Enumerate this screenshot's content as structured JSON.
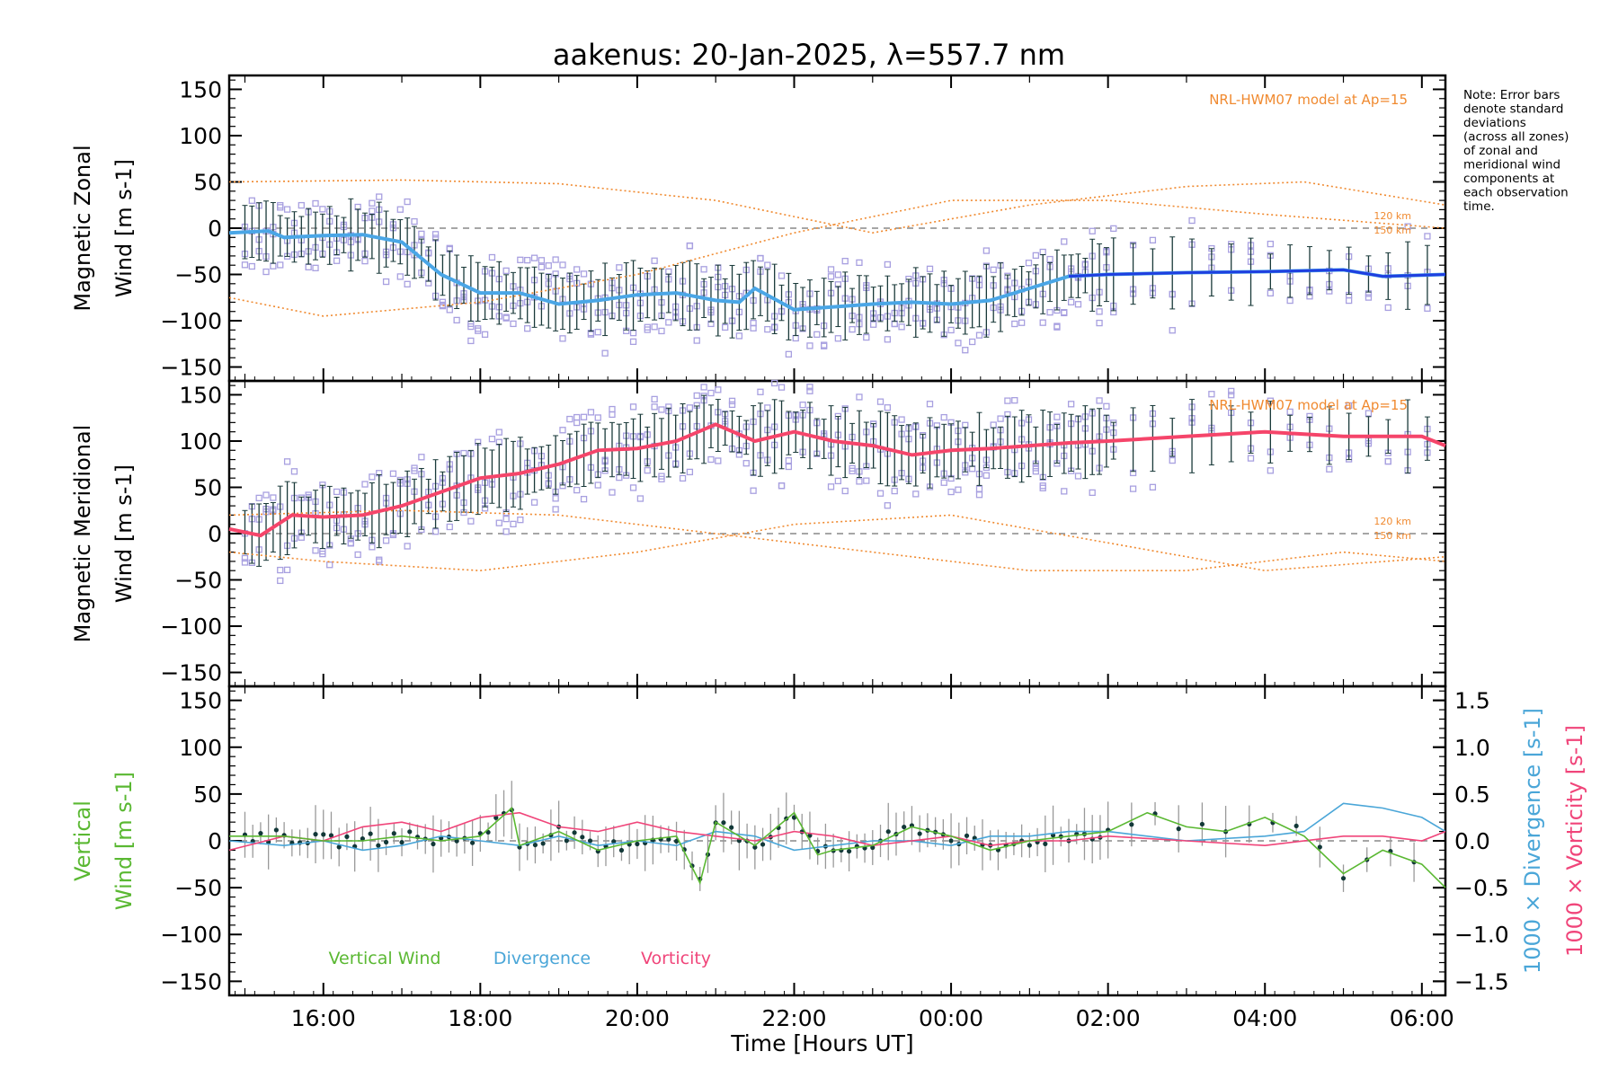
{
  "title": "aakenus: 20-Jan-2025, λ=557.7 nm",
  "note_lines": [
    "Note: Error bars",
    "denote standard",
    "deviations",
    "(across all zones)",
    "of zonal and",
    "meridional wind",
    "components at",
    "each observation",
    "time."
  ],
  "model_label": "NRL-HWM07 model at Ap=15",
  "alt_labels": [
    "120 km",
    "150 km"
  ],
  "xlabel": "Time [Hours UT]",
  "legend": [
    "Vertical Wind",
    "Divergence",
    "Vorticity"
  ],
  "colors": {
    "zonal": "#1f3fe0",
    "zonal_light": "#4aa6e6",
    "meridional": "#f5456a",
    "vertical": "#5ab832",
    "divergence": "#4aa6d8",
    "vorticity": "#f0457a",
    "model": "#f08a30",
    "scatter": "#a8a0e0",
    "errbar": "#1a3a3a"
  },
  "chart_data": [
    {
      "type": "line",
      "panel": "zonal",
      "title": "aakenus: 20-Jan-2025, λ=557.7 nm",
      "ylabel_line1": "Magnetic Zonal",
      "ylabel_line2": "Wind [m s-1]",
      "xticks": [
        "16:00",
        "18:00",
        "20:00",
        "22:00",
        "00:00",
        "02:00",
        "04:00",
        "06:00"
      ],
      "xtick_hours": [
        16,
        18,
        20,
        22,
        24,
        26,
        28,
        30
      ],
      "xlim_hours": [
        14.8,
        30.3
      ],
      "ylim": [
        -165,
        165
      ],
      "yticks": [
        150,
        100,
        50,
        0,
        -50,
        -100,
        -150
      ],
      "series": [
        {
          "name": "Zonal wind",
          "x": [
            14.8,
            15.3,
            15.5,
            16.0,
            16.5,
            17.0,
            17.5,
            18.0,
            18.5,
            19.0,
            19.5,
            20.0,
            20.5,
            21.0,
            21.3,
            21.5,
            22.0,
            22.5,
            23.0,
            23.5,
            24.0,
            24.5,
            25.0,
            25.5,
            26.0,
            27.0,
            28.0,
            29.0,
            29.5,
            30.3
          ],
          "y": [
            -5,
            -3,
            -10,
            -8,
            -7,
            -15,
            -50,
            -70,
            -70,
            -82,
            -78,
            -72,
            -70,
            -78,
            -80,
            -65,
            -88,
            -85,
            -82,
            -80,
            -82,
            -78,
            -65,
            -52,
            -50,
            -48,
            -47,
            -45,
            -52,
            -50
          ]
        },
        {
          "name": "Model 120 km",
          "x": [
            14.8,
            17,
            19,
            21,
            23,
            25,
            27,
            28.5,
            30.3
          ],
          "y": [
            50,
            52,
            48,
            30,
            -5,
            25,
            45,
            50,
            25
          ]
        },
        {
          "name": "Model 150 km",
          "x": [
            14.8,
            16,
            18,
            20,
            22,
            24,
            26,
            28,
            30.3
          ],
          "y": [
            -75,
            -95,
            -80,
            -50,
            -5,
            30,
            30,
            15,
            0
          ]
        }
      ]
    },
    {
      "type": "line",
      "panel": "meridional",
      "ylabel_line1": "Magnetic Meridional",
      "ylabel_line2": "Wind [m s-1]",
      "ylim": [
        -165,
        165
      ],
      "yticks": [
        150,
        100,
        50,
        0,
        -50,
        -100,
        -150
      ],
      "series": [
        {
          "name": "Meridional wind",
          "x": [
            14.8,
            15.2,
            15.6,
            16.0,
            16.5,
            17.0,
            17.5,
            18.0,
            18.5,
            19.0,
            19.5,
            20.0,
            20.5,
            21.0,
            21.5,
            22.0,
            22.5,
            23.0,
            23.5,
            24.0,
            24.5,
            25.0,
            25.5,
            26.0,
            27.0,
            28.0,
            29.0,
            30.0,
            30.3
          ],
          "y": [
            5,
            -2,
            20,
            18,
            20,
            30,
            45,
            60,
            65,
            75,
            90,
            92,
            100,
            118,
            100,
            110,
            100,
            95,
            85,
            90,
            92,
            95,
            98,
            100,
            105,
            110,
            105,
            105,
            95
          ]
        },
        {
          "name": "Model 120 km",
          "x": [
            14.8,
            16,
            18,
            20,
            22,
            24,
            26,
            28,
            30.3
          ],
          "y": [
            -20,
            -30,
            -40,
            -20,
            10,
            20,
            -10,
            -40,
            -25
          ]
        },
        {
          "name": "Model 150 km",
          "x": [
            14.8,
            17,
            19,
            21,
            23,
            25,
            27,
            29,
            30.3
          ],
          "y": [
            20,
            25,
            20,
            0,
            -20,
            -40,
            -40,
            -20,
            -30
          ]
        }
      ]
    },
    {
      "type": "line",
      "panel": "vertical",
      "ylabel_line1": "Vertical",
      "ylabel_line2": "Wind [m s-1]",
      "ylim": [
        -165,
        165
      ],
      "yticks": [
        150,
        100,
        50,
        0,
        -50,
        -100,
        -150
      ],
      "right_ylim": [
        -1.65,
        1.65
      ],
      "right_yticks": [
        "1.5",
        "1.0",
        "0.5",
        "0.0",
        "−0.5",
        "−1.0",
        "−1.5"
      ],
      "right_ylabel_1": "1000 × Divergence [s-1]",
      "right_ylabel_2": "1000 × Vorticity [s-1]",
      "series": [
        {
          "name": "Vertical Wind",
          "x": [
            14.8,
            15.5,
            16.0,
            16.5,
            17.0,
            17.5,
            18.0,
            18.4,
            18.5,
            19.0,
            19.5,
            20.0,
            20.5,
            20.8,
            21.0,
            21.5,
            22.0,
            22.3,
            22.5,
            23.0,
            23.5,
            24.0,
            24.5,
            25.0,
            25.5,
            26.0,
            26.5,
            27.0,
            27.5,
            28.0,
            28.5,
            29.0,
            29.5,
            30.0,
            30.3
          ],
          "y": [
            5,
            5,
            0,
            0,
            5,
            0,
            5,
            35,
            -5,
            10,
            -10,
            0,
            5,
            -45,
            20,
            -5,
            30,
            -15,
            -10,
            -5,
            15,
            5,
            -10,
            0,
            5,
            10,
            30,
            15,
            10,
            25,
            5,
            -35,
            -10,
            -25,
            -50
          ]
        },
        {
          "name": "Divergence",
          "x": [
            14.8,
            15.5,
            16.0,
            16.5,
            17.0,
            17.5,
            18.0,
            18.5,
            19.0,
            19.5,
            20.0,
            20.5,
            21.0,
            21.5,
            22.0,
            22.5,
            23.0,
            23.5,
            24.0,
            24.5,
            25.0,
            25.5,
            26.0,
            27.0,
            28.0,
            28.5,
            29.0,
            29.5,
            30.0,
            30.3
          ],
          "y": [
            0.0,
            -0.05,
            0.0,
            -0.1,
            -0.05,
            0.05,
            0.0,
            -0.05,
            0.05,
            -0.05,
            0.0,
            -0.05,
            0.1,
            0.05,
            -0.1,
            -0.05,
            0.0,
            0.0,
            -0.05,
            0.05,
            0.05,
            0.1,
            0.1,
            0.0,
            0.05,
            0.1,
            0.4,
            0.35,
            0.25,
            0.1
          ]
        },
        {
          "name": "Vorticity",
          "x": [
            14.8,
            15.5,
            16.0,
            16.5,
            17.0,
            17.5,
            18.0,
            18.5,
            19.0,
            19.5,
            20.0,
            20.5,
            21.0,
            21.5,
            22.0,
            22.5,
            23.0,
            23.5,
            24.0,
            24.5,
            25.0,
            25.5,
            26.0,
            27.0,
            28.0,
            29.0,
            29.5,
            30.0,
            30.3
          ],
          "y": [
            -0.1,
            0.05,
            0.0,
            0.15,
            0.2,
            0.1,
            0.25,
            0.3,
            0.15,
            0.1,
            0.2,
            0.1,
            0.05,
            0.0,
            0.1,
            0.05,
            -0.05,
            0.0,
            0.05,
            -0.05,
            0.0,
            0.0,
            0.05,
            0.0,
            -0.05,
            0.05,
            0.05,
            0.0,
            0.1
          ]
        }
      ]
    }
  ]
}
